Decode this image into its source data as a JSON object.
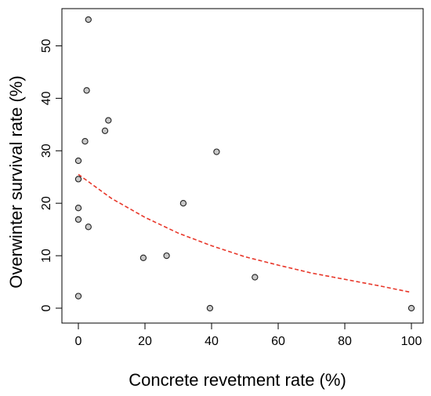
{
  "chart_data": {
    "type": "scatter",
    "xlabel": "Concrete revetment rate (%)",
    "ylabel": "Overwinter survival rate (%)",
    "xlim": [
      0,
      100
    ],
    "ylim": [
      0,
      55
    ],
    "x_ticks": [
      "0",
      "20",
      "40",
      "60",
      "80",
      "100"
    ],
    "y_ticks": [
      "0",
      "10",
      "20",
      "30",
      "40",
      "50"
    ],
    "grid": false,
    "legend": "none",
    "points": [
      {
        "x": 3,
        "y": 55
      },
      {
        "x": 2.5,
        "y": 41.5
      },
      {
        "x": 9,
        "y": 35.8
      },
      {
        "x": 8,
        "y": 33.8
      },
      {
        "x": 2,
        "y": 31.8
      },
      {
        "x": 41.5,
        "y": 29.8
      },
      {
        "x": 0,
        "y": 28.1
      },
      {
        "x": 0,
        "y": 24.6
      },
      {
        "x": 31.5,
        "y": 20
      },
      {
        "x": 0,
        "y": 19.1
      },
      {
        "x": 0,
        "y": 16.9
      },
      {
        "x": 3,
        "y": 15.5
      },
      {
        "x": 26.5,
        "y": 10
      },
      {
        "x": 19.5,
        "y": 9.6
      },
      {
        "x": 53,
        "y": 5.9
      },
      {
        "x": 0,
        "y": 2.3
      },
      {
        "x": 39.5,
        "y": 0
      },
      {
        "x": 100,
        "y": 0
      }
    ],
    "fit": {
      "style": "dashed",
      "color": "#e8372a",
      "x": [
        0,
        10,
        20,
        30,
        40,
        50,
        60,
        70,
        80,
        90,
        100
      ],
      "y": [
        25.5,
        20.9,
        17.3,
        14.3,
        11.9,
        9.8,
        8.2,
        6.7,
        5.5,
        4.3,
        3.0
      ]
    },
    "colors": {
      "point_fill": "#c8c8c8",
      "point_stroke": "#222222",
      "axis": "#000000"
    }
  }
}
